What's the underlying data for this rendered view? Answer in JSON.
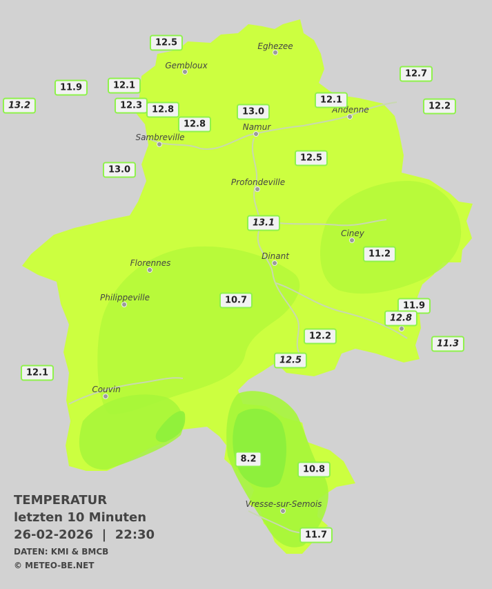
{
  "colors": {
    "background": "#d2d2d2",
    "region_light": "#ccff40",
    "region_mid": "#b4fa3a",
    "region_dark": "#90f03c",
    "label_border": "#8ef24a",
    "river": "#c8d8b0"
  },
  "towns": [
    {
      "id": "eghezee",
      "name": "Eghezee"
    },
    {
      "id": "gembloux",
      "name": "Gembloux"
    },
    {
      "id": "andenne",
      "name": "Andenne"
    },
    {
      "id": "namur",
      "name": "Namur"
    },
    {
      "id": "sambreville",
      "name": "Sambreville"
    },
    {
      "id": "profondeville",
      "name": "Profondeville"
    },
    {
      "id": "ciney",
      "name": "Ciney"
    },
    {
      "id": "dinant",
      "name": "Dinant"
    },
    {
      "id": "florennes",
      "name": "Florennes"
    },
    {
      "id": "philippeville",
      "name": "Philippeville"
    },
    {
      "id": "couvin",
      "name": "Couvin"
    },
    {
      "id": "vresse",
      "name": "Vresse-sur-Semois"
    }
  ],
  "readings": [
    {
      "id": "r01",
      "value": "12.5",
      "italic": false
    },
    {
      "id": "r02",
      "value": "12.7",
      "italic": false
    },
    {
      "id": "r03",
      "value": "11.9",
      "italic": false
    },
    {
      "id": "r04",
      "value": "12.1",
      "italic": false
    },
    {
      "id": "r05",
      "value": "13.2",
      "italic": true
    },
    {
      "id": "r06",
      "value": "12.3",
      "italic": false
    },
    {
      "id": "r07",
      "value": "12.8",
      "italic": false
    },
    {
      "id": "r08",
      "value": "13.0",
      "italic": false
    },
    {
      "id": "r09",
      "value": "12.1",
      "italic": false
    },
    {
      "id": "r10",
      "value": "12.2",
      "italic": false
    },
    {
      "id": "r11",
      "value": "12.8",
      "italic": false
    },
    {
      "id": "r12",
      "value": "13.0",
      "italic": false
    },
    {
      "id": "r13",
      "value": "12.5",
      "italic": false
    },
    {
      "id": "r14",
      "value": "13.1",
      "italic": true
    },
    {
      "id": "r15",
      "value": "11.2",
      "italic": false
    },
    {
      "id": "r16",
      "value": "10.7",
      "italic": false
    },
    {
      "id": "r17",
      "value": "11.9",
      "italic": false
    },
    {
      "id": "r18",
      "value": "12.8",
      "italic": true
    },
    {
      "id": "r19",
      "value": "12.2",
      "italic": false
    },
    {
      "id": "r20",
      "value": "11.3",
      "italic": true
    },
    {
      "id": "r21",
      "value": "12.5",
      "italic": true
    },
    {
      "id": "r22",
      "value": "12.1",
      "italic": false
    },
    {
      "id": "r23",
      "value": "8.2",
      "italic": false
    },
    {
      "id": "r24",
      "value": "10.8",
      "italic": false
    },
    {
      "id": "r25",
      "value": "11.7",
      "italic": false
    }
  ],
  "info": {
    "title": "TEMPERATUR",
    "subtitle": "letzten 10 Minuten",
    "datetime": "26-02-2026  |  22:30",
    "source": "DATEN: KMI & BMCB",
    "copyright": "© METEO-BE.NET"
  }
}
